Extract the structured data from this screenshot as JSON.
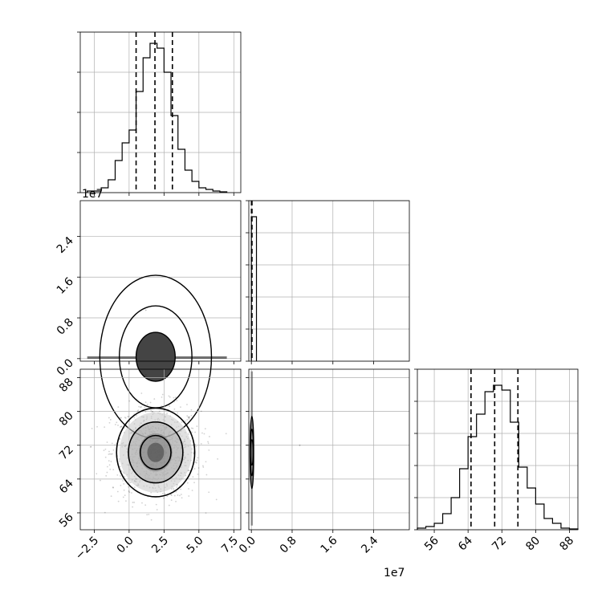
{
  "chart_data": {
    "type": "corner",
    "scale_label": "1e7",
    "panels": [
      {
        "name": "hist-param0",
        "type": "histogram",
        "xlim": [
          -3.5,
          8.0
        ],
        "ylim": [
          0,
          1.0
        ],
        "bins": [
          {
            "x0": -3.0,
            "x1": -2.5,
            "h": 0.01
          },
          {
            "x0": -2.5,
            "x1": -2.0,
            "h": 0.01
          },
          {
            "x0": -2.0,
            "x1": -1.5,
            "h": 0.03
          },
          {
            "x0": -1.5,
            "x1": -1.0,
            "h": 0.08
          },
          {
            "x0": -1.0,
            "x1": -0.5,
            "h": 0.2
          },
          {
            "x0": -0.5,
            "x1": 0.0,
            "h": 0.31
          },
          {
            "x0": 0.0,
            "x1": 0.5,
            "h": 0.39
          },
          {
            "x0": 0.5,
            "x1": 1.0,
            "h": 0.63
          },
          {
            "x0": 1.0,
            "x1": 1.5,
            "h": 0.84
          },
          {
            "x0": 1.5,
            "x1": 2.0,
            "h": 0.93
          },
          {
            "x0": 2.0,
            "x1": 2.5,
            "h": 0.9
          },
          {
            "x0": 2.5,
            "x1": 3.0,
            "h": 0.75
          },
          {
            "x0": 3.0,
            "x1": 3.5,
            "h": 0.48
          },
          {
            "x0": 3.5,
            "x1": 4.0,
            "h": 0.27
          },
          {
            "x0": 4.0,
            "x1": 4.5,
            "h": 0.14
          },
          {
            "x0": 4.5,
            "x1": 5.0,
            "h": 0.07
          },
          {
            "x0": 5.0,
            "x1": 5.5,
            "h": 0.03
          },
          {
            "x0": 5.5,
            "x1": 6.0,
            "h": 0.02
          },
          {
            "x0": 6.0,
            "x1": 6.5,
            "h": 0.01
          },
          {
            "x0": 6.5,
            "x1": 7.0,
            "h": 0.005
          }
        ],
        "quantiles": [
          0.5,
          1.85,
          3.1
        ],
        "ytick_values": [
          0.0,
          0.25,
          0.5,
          0.75,
          1.0
        ]
      },
      {
        "name": "hist-param1",
        "type": "histogram",
        "xlim": [
          -0.05,
          3.1
        ],
        "ylim": [
          0,
          1.0
        ],
        "bins": [
          {
            "x0": 0.0,
            "x1": 0.1,
            "h": 0.9
          }
        ],
        "quantiles": [
          0.002,
          0.005,
          0.012
        ],
        "ytick_values": [
          0.0,
          0.2,
          0.4,
          0.6,
          0.8,
          1.0
        ]
      },
      {
        "name": "hist-param2",
        "type": "histogram",
        "xlim": [
          52,
          90
        ],
        "ylim": [
          0,
          1.0
        ],
        "bins": [
          {
            "x0": 52,
            "x1": 54,
            "h": 0.01
          },
          {
            "x0": 54,
            "x1": 56,
            "h": 0.02
          },
          {
            "x0": 56,
            "x1": 58,
            "h": 0.04
          },
          {
            "x0": 58,
            "x1": 60,
            "h": 0.1
          },
          {
            "x0": 60,
            "x1": 62,
            "h": 0.2
          },
          {
            "x0": 62,
            "x1": 64,
            "h": 0.38
          },
          {
            "x0": 64,
            "x1": 66,
            "h": 0.58
          },
          {
            "x0": 66,
            "x1": 68,
            "h": 0.72
          },
          {
            "x0": 68,
            "x1": 70,
            "h": 0.86
          },
          {
            "x0": 70,
            "x1": 72,
            "h": 0.9
          },
          {
            "x0": 72,
            "x1": 74,
            "h": 0.87
          },
          {
            "x0": 74,
            "x1": 76,
            "h": 0.67
          },
          {
            "x0": 76,
            "x1": 78,
            "h": 0.39
          },
          {
            "x0": 78,
            "x1": 80,
            "h": 0.26
          },
          {
            "x0": 80,
            "x1": 82,
            "h": 0.16
          },
          {
            "x0": 82,
            "x1": 84,
            "h": 0.07
          },
          {
            "x0": 84,
            "x1": 86,
            "h": 0.04
          },
          {
            "x0": 86,
            "x1": 88,
            "h": 0.01
          },
          {
            "x0": 88,
            "x1": 90,
            "h": 0.005
          }
        ],
        "quantiles": [
          64.7,
          70.3,
          75.8
        ],
        "ytick_values": [
          0.0,
          0.2,
          0.4,
          0.6,
          0.8,
          1.0
        ]
      },
      {
        "name": "joint-param0-param1",
        "type": "contour",
        "xlim": [
          -3.5,
          8.0
        ],
        "ylim": [
          -0.05,
          3.1
        ],
        "center": [
          1.9,
          0.02
        ],
        "levels": [
          [
            4.0,
            0.04
          ],
          [
            2.6,
            0.025
          ],
          [
            1.4,
            0.012
          ]
        ],
        "band_extent": [
          -3.0,
          7.0
        ]
      },
      {
        "name": "joint-param0-param2",
        "type": "contour",
        "xlim": [
          -3.5,
          8.0
        ],
        "ylim": [
          52,
          90
        ],
        "center": [
          1.9,
          70.3
        ],
        "levels": [
          [
            2.8,
            10.5
          ],
          [
            1.95,
            7.2
          ],
          [
            1.1,
            4.0
          ]
        ],
        "spread": [
          1.6,
          5.6
        ]
      },
      {
        "name": "joint-param1-param2",
        "type": "contour",
        "xlim": [
          -0.05,
          3.1
        ],
        "ylim": [
          52,
          90
        ],
        "center": [
          0.01,
          70.3
        ],
        "levels": [
          [
            0.035,
            8.5
          ],
          [
            0.025,
            5.5
          ],
          [
            0.015,
            3.0
          ]
        ],
        "outlier": [
          0.95,
          72
        ]
      }
    ],
    "axes": {
      "x0_ticks": [
        -2.5,
        0.0,
        2.5,
        5.0,
        7.5
      ],
      "x0_tick_labels": [
        "−2.5",
        "0.0",
        "2.5",
        "5.0",
        "7.5"
      ],
      "x1_ticks": [
        0.0,
        0.8,
        1.6,
        2.4
      ],
      "x1_tick_labels": [
        "0.0",
        "0.8",
        "1.6",
        "2.4"
      ],
      "x2_ticks": [
        56,
        64,
        72,
        80,
        88
      ],
      "x2_tick_labels": [
        "56",
        "64",
        "72",
        "80",
        "88"
      ],
      "y1_ticks": [
        0.0,
        0.8,
        1.6,
        2.4
      ],
      "y1_tick_labels": [
        "0.0",
        "0.8",
        "1.6",
        "2.4"
      ],
      "y2_ticks": [
        56,
        64,
        72,
        80,
        88
      ],
      "y2_tick_labels": [
        "56",
        "64",
        "72",
        "80",
        "88"
      ]
    },
    "grid": true,
    "colors": {
      "line": "#000000",
      "grid": "#b0b0b0",
      "fill": "#9a9a9a"
    }
  }
}
